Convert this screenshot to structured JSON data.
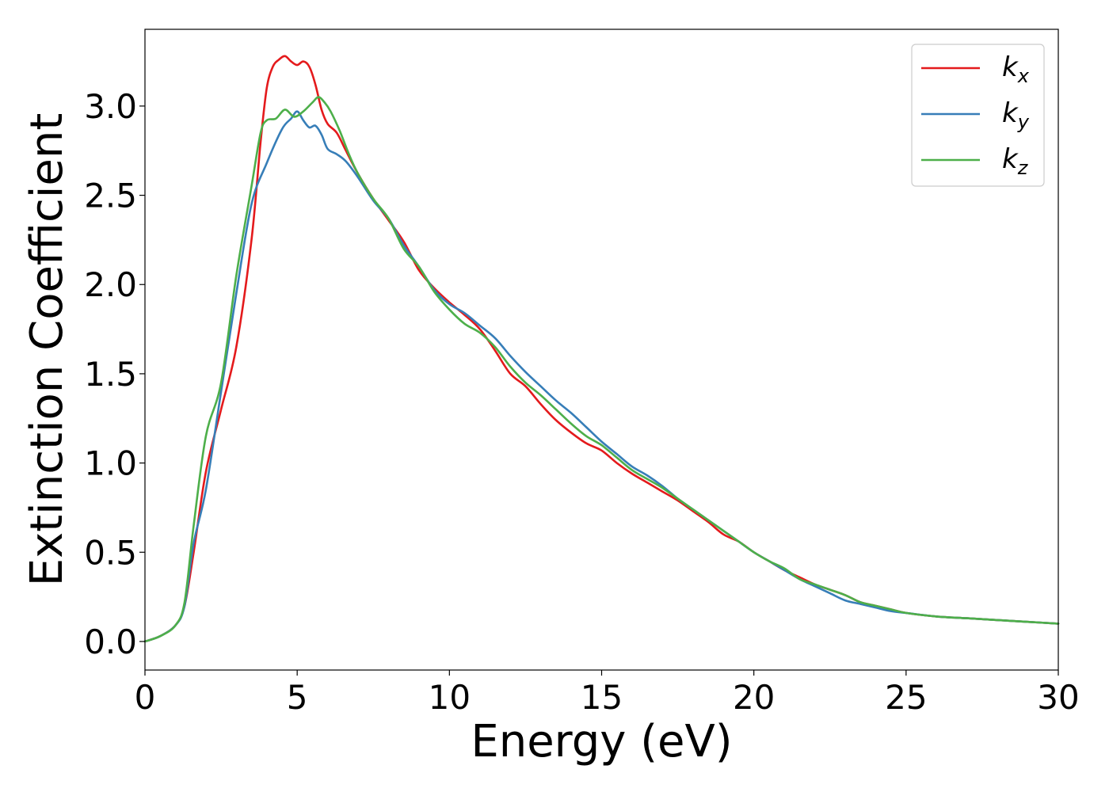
{
  "chart_data": {
    "type": "line",
    "title": "",
    "xlabel": "Energy (eV)",
    "ylabel": "Extinction Coefficient",
    "xlim": [
      0,
      30
    ],
    "ylim": [
      -0.16,
      3.43
    ],
    "xticks": [
      0,
      5,
      10,
      15,
      20,
      25,
      30
    ],
    "xtick_labels": [
      "0",
      "5",
      "10",
      "15",
      "20",
      "25",
      "30"
    ],
    "yticks": [
      0.0,
      0.5,
      1.0,
      1.5,
      2.0,
      2.5,
      3.0
    ],
    "ytick_labels": [
      "0.0",
      "0.5",
      "1.0",
      "1.5",
      "2.0",
      "2.5",
      "3.0"
    ],
    "grid": false,
    "legend_position": "top-right",
    "series": [
      {
        "name": "k_x",
        "label_base": "k",
        "label_sub": "x",
        "color": "#e41a1c",
        "x": [
          0,
          0.5,
          1.0,
          1.3,
          1.6,
          2.0,
          2.5,
          3.0,
          3.5,
          3.8,
          4.0,
          4.2,
          4.4,
          4.6,
          4.8,
          5.0,
          5.2,
          5.4,
          5.6,
          5.8,
          6.0,
          6.3,
          6.6,
          7.0,
          7.5,
          8.0,
          8.5,
          9.0,
          9.5,
          10.0,
          10.5,
          11.0,
          11.5,
          12.0,
          12.5,
          13.0,
          13.5,
          14.0,
          14.5,
          15.0,
          15.5,
          16.0,
          16.5,
          17.0,
          17.5,
          18.0,
          18.5,
          19.0,
          19.5,
          20.0,
          20.5,
          21.0,
          21.5,
          22.0,
          22.5,
          23.0,
          23.5,
          24.0,
          24.5,
          25.0,
          26.0,
          27.0,
          28.0,
          29.0,
          30.0
        ],
        "y": [
          0.0,
          0.03,
          0.09,
          0.2,
          0.5,
          0.95,
          1.3,
          1.65,
          2.25,
          2.8,
          3.1,
          3.22,
          3.26,
          3.28,
          3.25,
          3.23,
          3.25,
          3.22,
          3.12,
          2.98,
          2.9,
          2.85,
          2.75,
          2.62,
          2.48,
          2.36,
          2.24,
          2.08,
          1.98,
          1.9,
          1.83,
          1.75,
          1.63,
          1.5,
          1.43,
          1.33,
          1.24,
          1.17,
          1.11,
          1.07,
          1.0,
          0.94,
          0.89,
          0.84,
          0.79,
          0.73,
          0.67,
          0.6,
          0.56,
          0.5,
          0.45,
          0.4,
          0.36,
          0.32,
          0.29,
          0.26,
          0.22,
          0.2,
          0.18,
          0.16,
          0.14,
          0.13,
          0.12,
          0.11,
          0.1
        ]
      },
      {
        "name": "k_y",
        "label_base": "k",
        "label_sub": "y",
        "color": "#377eb8",
        "x": [
          0,
          0.5,
          1.0,
          1.3,
          1.6,
          2.0,
          2.5,
          3.0,
          3.5,
          4.0,
          4.5,
          4.8,
          5.0,
          5.2,
          5.4,
          5.6,
          5.8,
          6.0,
          6.3,
          6.6,
          7.0,
          7.5,
          8.0,
          8.5,
          9.0,
          9.5,
          10.0,
          10.5,
          11.0,
          11.5,
          12.0,
          12.5,
          13.0,
          13.5,
          14.0,
          14.5,
          15.0,
          15.5,
          16.0,
          16.5,
          17.0,
          17.5,
          18.0,
          18.5,
          19.0,
          19.5,
          20.0,
          20.5,
          21.0,
          21.5,
          22.0,
          22.5,
          23.0,
          23.5,
          24.0,
          24.5,
          25.0,
          26.0,
          27.0,
          28.0,
          29.0,
          30.0
        ],
        "y": [
          0.0,
          0.03,
          0.09,
          0.2,
          0.55,
          0.85,
          1.4,
          1.95,
          2.45,
          2.68,
          2.87,
          2.93,
          2.97,
          2.92,
          2.88,
          2.89,
          2.84,
          2.76,
          2.73,
          2.69,
          2.6,
          2.47,
          2.37,
          2.22,
          2.1,
          1.97,
          1.89,
          1.84,
          1.77,
          1.7,
          1.6,
          1.51,
          1.43,
          1.35,
          1.28,
          1.2,
          1.12,
          1.05,
          0.98,
          0.93,
          0.87,
          0.8,
          0.74,
          0.68,
          0.62,
          0.56,
          0.5,
          0.45,
          0.4,
          0.35,
          0.31,
          0.27,
          0.23,
          0.21,
          0.19,
          0.17,
          0.16,
          0.14,
          0.13,
          0.12,
          0.11,
          0.1
        ]
      },
      {
        "name": "k_z",
        "label_base": "k",
        "label_sub": "z",
        "color": "#4daf4a",
        "x": [
          0,
          0.5,
          1.0,
          1.3,
          1.6,
          2.0,
          2.5,
          3.0,
          3.5,
          3.8,
          4.0,
          4.3,
          4.6,
          4.9,
          5.2,
          5.5,
          5.7,
          5.9,
          6.1,
          6.4,
          6.7,
          7.0,
          7.5,
          8.0,
          8.5,
          9.0,
          9.5,
          10.0,
          10.5,
          11.0,
          11.5,
          12.0,
          12.5,
          13.0,
          13.5,
          14.0,
          14.5,
          15.0,
          15.5,
          16.0,
          16.5,
          17.0,
          17.5,
          18.0,
          18.5,
          19.0,
          19.5,
          20.0,
          20.5,
          21.0,
          21.5,
          22.0,
          22.5,
          23.0,
          23.5,
          24.0,
          24.5,
          25.0,
          26.0,
          27.0,
          28.0,
          29.0,
          30.0
        ],
        "y": [
          0.0,
          0.03,
          0.09,
          0.22,
          0.65,
          1.15,
          1.45,
          2.05,
          2.55,
          2.85,
          2.92,
          2.93,
          2.98,
          2.94,
          2.97,
          3.02,
          3.05,
          3.02,
          2.97,
          2.86,
          2.73,
          2.62,
          2.48,
          2.37,
          2.2,
          2.1,
          1.96,
          1.86,
          1.78,
          1.73,
          1.65,
          1.54,
          1.45,
          1.38,
          1.3,
          1.22,
          1.15,
          1.1,
          1.03,
          0.96,
          0.91,
          0.86,
          0.8,
          0.74,
          0.68,
          0.62,
          0.56,
          0.5,
          0.45,
          0.41,
          0.35,
          0.32,
          0.29,
          0.26,
          0.22,
          0.2,
          0.18,
          0.16,
          0.14,
          0.13,
          0.12,
          0.11,
          0.1
        ]
      }
    ]
  }
}
